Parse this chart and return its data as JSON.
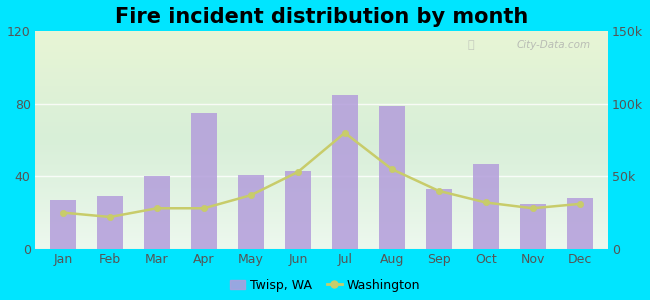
{
  "title": "Fire incident distribution by month",
  "months": [
    "Jan",
    "Feb",
    "Mar",
    "Apr",
    "May",
    "Jun",
    "Jul",
    "Aug",
    "Sep",
    "Oct",
    "Nov",
    "Dec"
  ],
  "twisp_values": [
    27,
    29,
    40,
    75,
    41,
    43,
    85,
    79,
    33,
    47,
    25,
    28
  ],
  "washington_right_scale": [
    25000,
    22000,
    28000,
    28000,
    37000,
    53000,
    80000,
    55000,
    40000,
    32000,
    28000,
    31000
  ],
  "bar_color": "#b39ddb",
  "line_color": "#c8cc6a",
  "line_marker_color": "#c8cc6a",
  "outer_bg": "#00e5ff",
  "grad_top": "#ddf0e0",
  "grad_bottom": "#eef8dc",
  "ylim_left": [
    0,
    120
  ],
  "ylim_right": [
    0,
    150000
  ],
  "yticks_left": [
    0,
    40,
    80,
    120
  ],
  "yticks_right": [
    0,
    50000,
    100000,
    150000
  ],
  "ytick_labels_right": [
    "0",
    "50k",
    "100k",
    "150k"
  ],
  "legend_twisp_label": "Twisp, WA",
  "legend_washington_label": "Washington",
  "title_fontsize": 15,
  "watermark": "City-Data.com",
  "tick_fontsize": 9,
  "bar_width": 0.55
}
